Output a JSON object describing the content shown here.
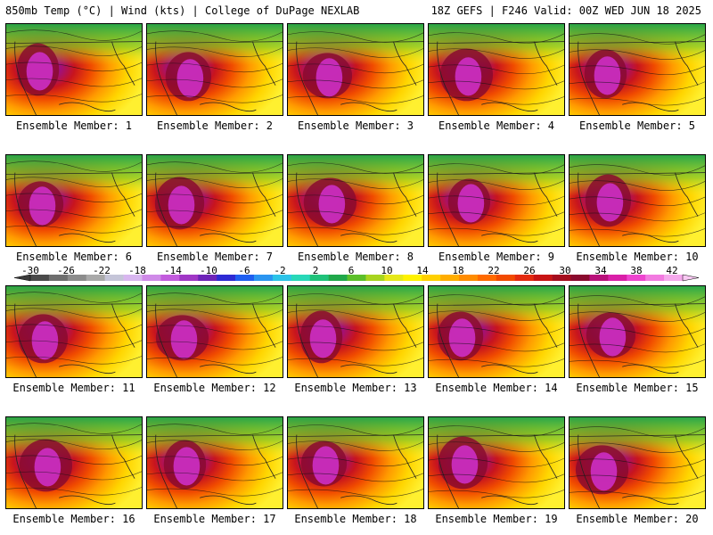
{
  "header": {
    "left": "850mb Temp (°C) | Wind (kts) | College of DuPage NEXLAB",
    "right": "18Z GEFS | F246 Valid: 00Z WED JUN 18 2025"
  },
  "panels": [
    {
      "caption": "Ensemble Member: 1"
    },
    {
      "caption": "Ensemble Member: 2"
    },
    {
      "caption": "Ensemble Member: 3"
    },
    {
      "caption": "Ensemble Member: 4"
    },
    {
      "caption": "Ensemble Member: 5"
    },
    {
      "caption": "Ensemble Member: 6"
    },
    {
      "caption": "Ensemble Member: 7"
    },
    {
      "caption": "Ensemble Member: 8"
    },
    {
      "caption": "Ensemble Member: 9"
    },
    {
      "caption": "Ensemble Member: 10"
    },
    {
      "caption": "Ensemble Member: 11"
    },
    {
      "caption": "Ensemble Member: 12"
    },
    {
      "caption": "Ensemble Member: 13"
    },
    {
      "caption": "Ensemble Member: 14"
    },
    {
      "caption": "Ensemble Member: 15"
    },
    {
      "caption": "Ensemble Member: 16"
    },
    {
      "caption": "Ensemble Member: 17"
    },
    {
      "caption": "Ensemble Member: 18"
    },
    {
      "caption": "Ensemble Member: 19"
    },
    {
      "caption": "Ensemble Member: 20"
    }
  ],
  "colorbar": {
    "labels": [
      "-30",
      "-26",
      "-22",
      "-18",
      "-14",
      "-10",
      "-6",
      "-2",
      "2",
      "6",
      "10",
      "14",
      "18",
      "22",
      "26",
      "30",
      "34",
      "38",
      "42"
    ],
    "colors": [
      "#4a4a4a",
      "#6e6e6e",
      "#8c8c8c",
      "#a9a9a9",
      "#c5c5d8",
      "#d8b6ef",
      "#cf8ae8",
      "#c25bdd",
      "#a037c6",
      "#6e24b8",
      "#2d2ad4",
      "#1f5ef0",
      "#2b95f0",
      "#2cc3e8",
      "#28d8b8",
      "#1fc27a",
      "#20a84a",
      "#5cbf2a",
      "#a8d41f",
      "#e6e81a",
      "#fff200",
      "#ffd000",
      "#ffad00",
      "#ff8c00",
      "#ff6a00",
      "#f24a00",
      "#e42a10",
      "#c81414",
      "#a50d1e",
      "#8a0a2e",
      "#b8107a",
      "#d91fa8",
      "#ee44cf",
      "#f27ae0",
      "#f5a8ec"
    ]
  }
}
